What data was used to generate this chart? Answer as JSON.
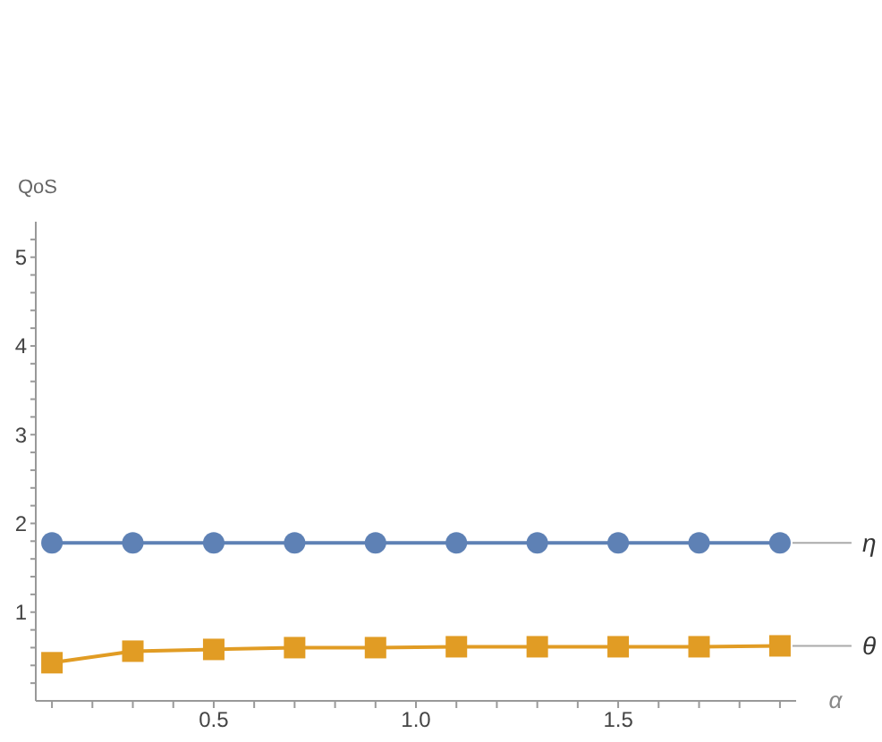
{
  "chart_data": {
    "type": "line",
    "xlabel": "α",
    "ylabel": "QoS",
    "x": [
      0.1,
      0.3,
      0.5,
      0.7,
      0.9,
      1.1,
      1.3,
      1.5,
      1.7,
      1.9
    ],
    "series": [
      {
        "name": "η",
        "color": "#5e81b5",
        "marker": "circle",
        "values": [
          1.78,
          1.78,
          1.78,
          1.78,
          1.78,
          1.78,
          1.78,
          1.78,
          1.78,
          1.78
        ]
      },
      {
        "name": "θ",
        "color": "#e19c24",
        "marker": "square",
        "values": [
          0.43,
          0.56,
          0.58,
          0.6,
          0.6,
          0.61,
          0.61,
          0.61,
          0.61,
          0.62
        ]
      }
    ],
    "xlim": [
      0.06,
      1.94
    ],
    "xticks": [
      {
        "value": 0.1,
        "label": null
      },
      {
        "value": 0.2,
        "label": null
      },
      {
        "value": 0.3,
        "label": null
      },
      {
        "value": 0.4,
        "label": null
      },
      0.5,
      {
        "value": 0.6,
        "label": null
      },
      {
        "value": 0.7,
        "label": null
      },
      {
        "value": 0.8,
        "label": null
      },
      {
        "value": 0.9,
        "label": null
      },
      {
        "value": 1,
        "label": "1.0"
      },
      {
        "value": 1.1,
        "label": null
      },
      {
        "value": 1.2,
        "label": null
      },
      {
        "value": 1.3,
        "label": null
      },
      {
        "value": 1.4,
        "label": null
      },
      1.5,
      {
        "value": 1.6,
        "label": null
      },
      {
        "value": 1.7,
        "label": null
      },
      {
        "value": 1.8,
        "label": null
      },
      {
        "value": 1.9,
        "label": null
      }
    ],
    "ylim": [
      0,
      5.4
    ],
    "yticks": [
      {
        "value": 0.2,
        "label": null
      },
      {
        "value": 0.4,
        "label": null
      },
      {
        "value": 0.6,
        "label": null
      },
      {
        "value": 0.8,
        "label": null
      },
      1,
      {
        "value": 1.2,
        "label": null
      },
      {
        "value": 1.4,
        "label": null
      },
      {
        "value": 1.6,
        "label": null
      },
      {
        "value": 1.8,
        "label": null
      },
      2,
      {
        "value": 2.2,
        "label": null
      },
      {
        "value": 2.4,
        "label": null
      },
      {
        "value": 2.6,
        "label": null
      },
      {
        "value": 2.8,
        "label": null
      },
      3,
      {
        "value": 3.2,
        "label": null
      },
      {
        "value": 3.4,
        "label": null
      },
      {
        "value": 3.6,
        "label": null
      },
      {
        "value": 3.8,
        "label": null
      },
      4,
      {
        "value": 4.2,
        "label": null
      },
      {
        "value": 4.4,
        "label": null
      },
      {
        "value": 4.6,
        "label": null
      },
      {
        "value": 4.8,
        "label": null
      },
      5,
      {
        "value": 5.2,
        "label": null
      }
    ],
    "grid": false,
    "legend": false
  }
}
